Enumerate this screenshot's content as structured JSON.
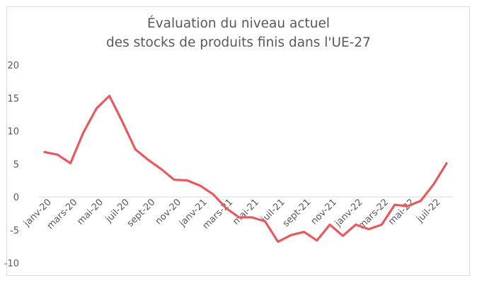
{
  "chart_data": {
    "type": "line",
    "title": [
      "Évaluation du niveau actuel",
      "des stocks de produits finis dans l'UE-27"
    ],
    "xlabel": "",
    "ylabel": "",
    "ylim": [
      -10,
      20
    ],
    "yticks": [
      "20",
      "15",
      "10",
      "5",
      "0",
      "-5",
      "-10"
    ],
    "ytick_values": [
      20,
      15,
      10,
      5,
      0,
      -5,
      -10
    ],
    "x_tick_labels": [
      "janv-20",
      "mars-20",
      "mai-20",
      "juil-20",
      "sept-20",
      "nov-20",
      "janv-21",
      "mars-21",
      "mai-21",
      "juil-21",
      "sept-21",
      "nov-21",
      "janv-22",
      "mars-22",
      "mai-22",
      "juil-22"
    ],
    "grid": false,
    "legend": "none",
    "line_color": "#e8595e",
    "x": [
      "janv-20",
      "févr-20",
      "mars-20",
      "avr-20",
      "mai-20",
      "juin-20",
      "juil-20",
      "août-20",
      "sept-20",
      "oct-20",
      "nov-20",
      "déc-20",
      "janv-21",
      "févr-21",
      "mars-21",
      "avr-21",
      "mai-21",
      "juin-21",
      "juil-21",
      "août-21",
      "sept-21",
      "oct-21",
      "nov-21",
      "déc-21",
      "janv-22",
      "févr-22",
      "mars-22",
      "avr-22",
      "mai-22",
      "juin-22",
      "juil-22",
      "août-22"
    ],
    "values": [
      6.8,
      6.4,
      5.1,
      9.8,
      13.4,
      15.3,
      11.4,
      7.2,
      5.6,
      4.2,
      2.6,
      2.5,
      1.7,
      0.4,
      -1.7,
      -3.1,
      -3.1,
      -3.7,
      -6.8,
      -5.8,
      -5.3,
      -6.6,
      -4.2,
      -5.9,
      -4.2,
      -4.9,
      -4.2,
      -1.2,
      -1.4,
      -0.6,
      1.9,
      5.1
    ]
  }
}
